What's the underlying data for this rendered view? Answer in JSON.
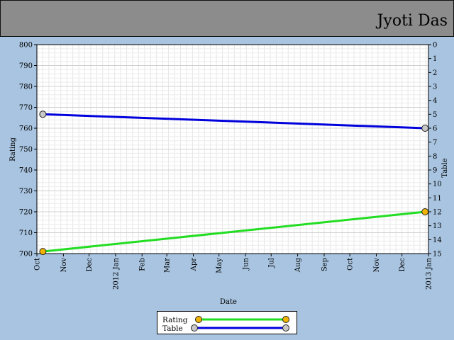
{
  "header": {
    "name": "Jyoti Das"
  },
  "chart_data": {
    "type": "line",
    "xlabel": "Date",
    "ylabel_left": "Rating",
    "ylabel_right": "Table",
    "x_ticks": [
      "Oct",
      "Nov",
      "Dec",
      "2012 Jan",
      "Feb",
      "Mar",
      "Apr",
      "May",
      "Jun",
      "Jul",
      "Aug",
      "Sep",
      "Oct",
      "Nov",
      "Dec",
      "2013 Jan"
    ],
    "ylim_left": [
      700,
      800
    ],
    "yticks_left": [
      700,
      710,
      720,
      730,
      740,
      750,
      760,
      770,
      780,
      790,
      800
    ],
    "ylim_right": [
      15,
      0
    ],
    "yticks_right": [
      0,
      1,
      2,
      3,
      4,
      5,
      6,
      7,
      8,
      9,
      10,
      11,
      12,
      13,
      14,
      15
    ],
    "grid": true,
    "legend_position": "bottom-center",
    "series": [
      {
        "name": "Rating",
        "axis": "left",
        "color": "#22dd22",
        "marker_color": "#f0b400",
        "x": [
          "2011-10-08",
          "2012-12-28"
        ],
        "y": [
          701,
          720
        ]
      },
      {
        "name": "Table",
        "axis": "right",
        "color": "#0000dd",
        "marker_color": "#c8c8c8",
        "x": [
          "2011-10-08",
          "2012-12-28"
        ],
        "y": [
          5,
          6
        ]
      }
    ]
  }
}
